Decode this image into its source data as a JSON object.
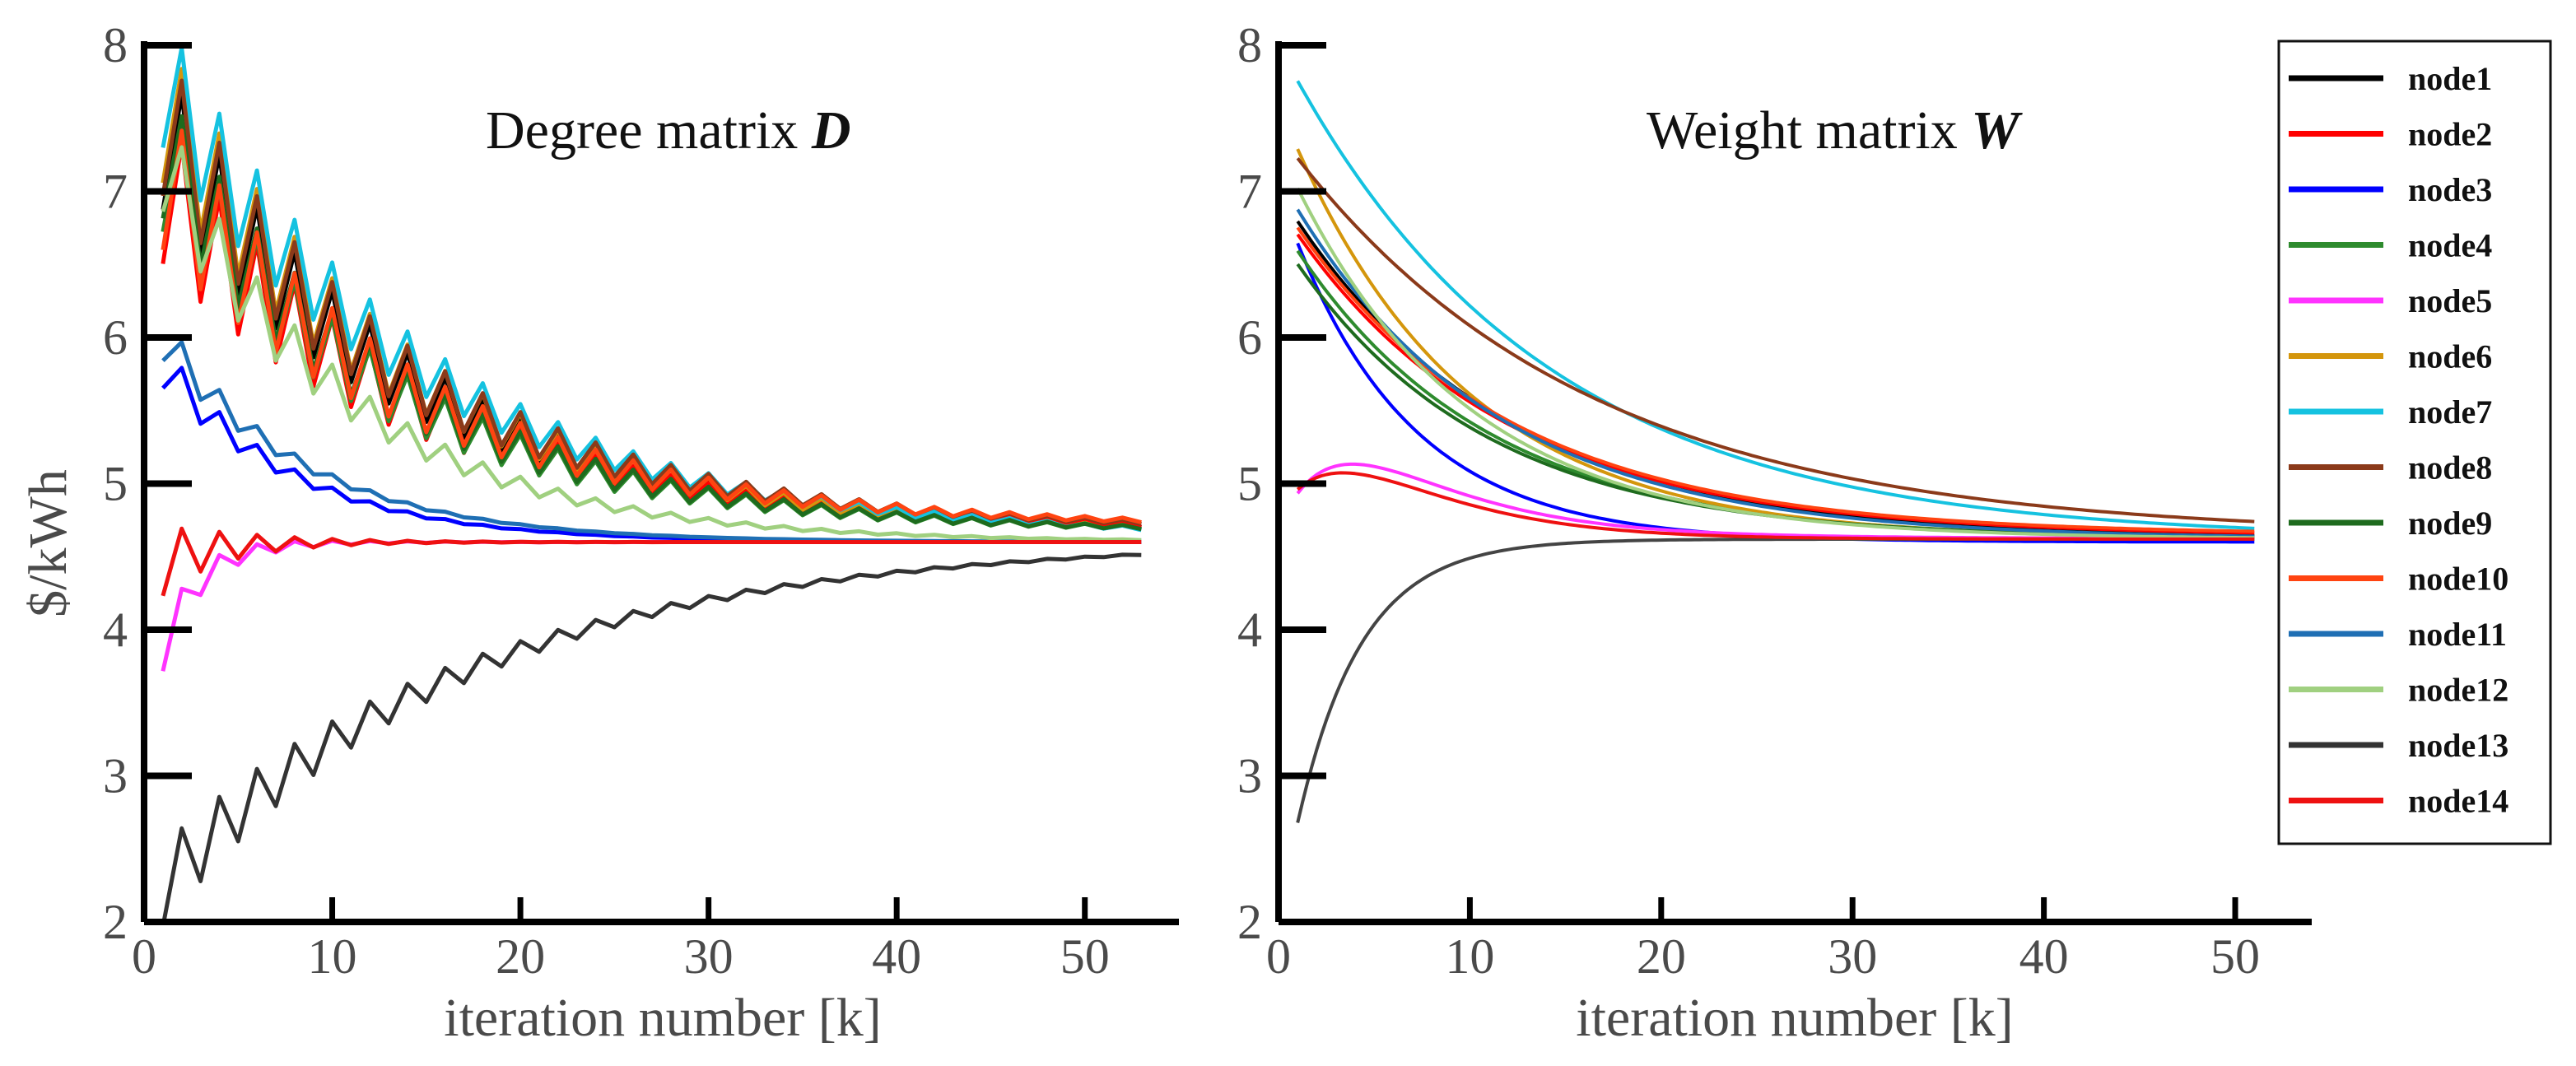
{
  "chart_data": [
    {
      "type": "line",
      "title": "Degree matrix ",
      "title_symbol": "D",
      "xlabel": "iteration number [k]",
      "ylabel": "$/kWh",
      "xlim": [
        0,
        55
      ],
      "ylim": [
        2,
        8
      ],
      "xticks": [
        0,
        10,
        20,
        30,
        40,
        50
      ],
      "yticks": [
        2,
        3,
        4,
        5,
        6,
        7,
        8
      ],
      "x_end": 53,
      "final_value": 4.6,
      "series": [
        {
          "name": "node1",
          "color": "#000000",
          "start": 7.6,
          "end": 4.66,
          "decay": 0.075,
          "osc": 0.55,
          "odecay": 0.07
        },
        {
          "name": "node2",
          "color": "#ff0000",
          "start": 7.2,
          "end": 4.67,
          "decay": 0.075,
          "osc": 0.55,
          "odecay": 0.07
        },
        {
          "name": "node3",
          "color": "#0000ff",
          "start": 6.0,
          "end": 4.6,
          "decay": 0.14,
          "osc": 0.2,
          "odecay": 0.2
        },
        {
          "name": "node4",
          "color": "#2e8b2e",
          "start": 7.4,
          "end": 4.66,
          "decay": 0.08,
          "osc": 0.5,
          "odecay": 0.07
        },
        {
          "name": "node5",
          "color": "#ff33ff",
          "start": 3.4,
          "end": 4.6,
          "decay": 0.5,
          "osc": 0.2,
          "odecay": 0.25
        },
        {
          "name": "node6",
          "color": "#d4960c",
          "start": 7.8,
          "end": 4.64,
          "decay": 0.075,
          "osc": 0.55,
          "odecay": 0.07
        },
        {
          "name": "node7",
          "color": "#15c2e0",
          "start": 8.0,
          "end": 4.62,
          "decay": 0.072,
          "osc": 0.5,
          "odecay": 0.07
        },
        {
          "name": "node8",
          "color": "#8b3a1a",
          "start": 7.7,
          "end": 4.68,
          "decay": 0.075,
          "osc": 0.55,
          "odecay": 0.07
        },
        {
          "name": "node9",
          "color": "#1e6b1e",
          "start": 7.5,
          "end": 4.66,
          "decay": 0.08,
          "osc": 0.5,
          "odecay": 0.07
        },
        {
          "name": "node10",
          "color": "#ff4411",
          "start": 7.3,
          "end": 4.7,
          "decay": 0.075,
          "osc": 0.55,
          "odecay": 0.07
        },
        {
          "name": "node11",
          "color": "#1f6fb4",
          "start": 6.2,
          "end": 4.6,
          "decay": 0.13,
          "osc": 0.2,
          "odecay": 0.2
        },
        {
          "name": "node12",
          "color": "#a0d080",
          "start": 7.5,
          "end": 4.6,
          "decay": 0.1,
          "osc": 0.4,
          "odecay": 0.1
        },
        {
          "name": "node13",
          "color": "#333333",
          "start": 2.1,
          "end": 4.62,
          "decay": 0.06,
          "osc": 0.3,
          "odecay": 0.08
        },
        {
          "name": "node14",
          "color": "#ee1111",
          "start": 4.4,
          "end": 4.6,
          "decay": 0.4,
          "osc": 0.3,
          "odecay": 0.25
        }
      ]
    },
    {
      "type": "line",
      "title": "Weight matrix ",
      "title_symbol": "W",
      "xlabel": "iteration number [k]",
      "ylabel": "",
      "xlim": [
        0,
        54
      ],
      "ylim": [
        2,
        8
      ],
      "xticks": [
        0,
        10,
        20,
        30,
        40,
        50
      ],
      "yticks": [
        2,
        3,
        4,
        5,
        6,
        7,
        8
      ],
      "x_end": 51,
      "final_value": 4.62,
      "series": [
        {
          "name": "node1",
          "color": "#000000",
          "start": 7.0,
          "end": 4.62,
          "decay": 0.09,
          "peak": 0
        },
        {
          "name": "node2",
          "color": "#ff0000",
          "start": 6.9,
          "end": 4.64,
          "decay": 0.09,
          "peak": 0
        },
        {
          "name": "node3",
          "color": "#0000ff",
          "start": 7.0,
          "end": 4.6,
          "decay": 0.16,
          "peak": 0
        },
        {
          "name": "node4",
          "color": "#2e8b2e",
          "start": 6.8,
          "end": 4.62,
          "decay": 0.1,
          "peak": 0
        },
        {
          "name": "node5",
          "color": "#ff33ff",
          "start": 4.7,
          "end": 4.62,
          "decay": 0.06,
          "peak": 0.45
        },
        {
          "name": "node6",
          "color": "#d4960c",
          "start": 7.6,
          "end": 4.62,
          "decay": 0.11,
          "peak": 0
        },
        {
          "name": "node7",
          "color": "#15c2e0",
          "start": 8.0,
          "end": 4.62,
          "decay": 0.075,
          "peak": 0
        },
        {
          "name": "node8",
          "color": "#8b3a1a",
          "start": 7.4,
          "end": 4.64,
          "decay": 0.065,
          "peak": 0
        },
        {
          "name": "node9",
          "color": "#1e6b1e",
          "start": 6.7,
          "end": 4.62,
          "decay": 0.1,
          "peak": 0
        },
        {
          "name": "node10",
          "color": "#ff4411",
          "start": 6.95,
          "end": 4.65,
          "decay": 0.09,
          "peak": 0
        },
        {
          "name": "node11",
          "color": "#1f6fb4",
          "start": 7.1,
          "end": 4.62,
          "decay": 0.095,
          "peak": 0
        },
        {
          "name": "node12",
          "color": "#a0d080",
          "start": 7.3,
          "end": 4.62,
          "decay": 0.11,
          "peak": 0
        },
        {
          "name": "node13",
          "color": "#444444",
          "start": 2.0,
          "end": 4.62,
          "decay": 0.3,
          "peak": 0
        },
        {
          "name": "node14",
          "color": "#ee1111",
          "start": 4.8,
          "end": 4.62,
          "decay": 0.15,
          "peak": 0.35
        }
      ]
    }
  ],
  "legend": [
    {
      "label": "node1",
      "color": "#000000"
    },
    {
      "label": "node2",
      "color": "#ff0000"
    },
    {
      "label": "node3",
      "color": "#0000ff"
    },
    {
      "label": "node4",
      "color": "#2e8b2e"
    },
    {
      "label": "node5",
      "color": "#ff33ff"
    },
    {
      "label": "node6",
      "color": "#d4960c"
    },
    {
      "label": "node7",
      "color": "#15c2e0"
    },
    {
      "label": "node8",
      "color": "#8b3a1a"
    },
    {
      "label": "node9",
      "color": "#1e6b1e"
    },
    {
      "label": "node10",
      "color": "#ff4411"
    },
    {
      "label": "node11",
      "color": "#1f6fb4"
    },
    {
      "label": "node12",
      "color": "#a0d080"
    },
    {
      "label": "node13",
      "color": "#333333"
    },
    {
      "label": "node14",
      "color": "#ee1111"
    }
  ]
}
